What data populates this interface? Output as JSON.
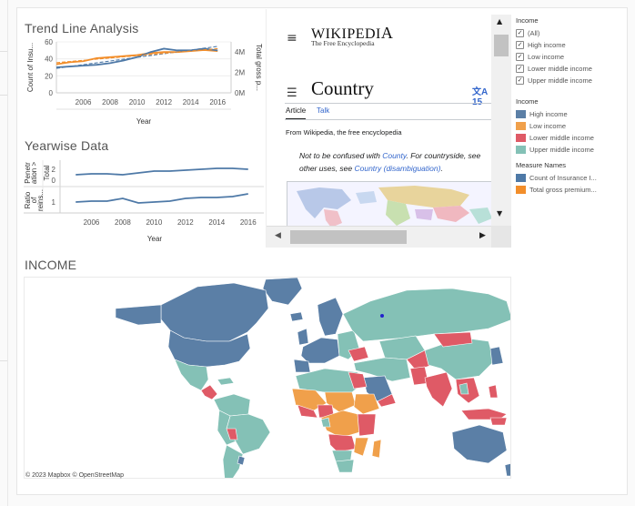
{
  "trend": {
    "title": "Trend Line Analysis",
    "y_left_label": "Count of Insu...",
    "y_right_label": "Total gross p...",
    "x_label": "Year",
    "y_left_ticks": [
      "60",
      "40",
      "20",
      "0"
    ],
    "y_right_ticks": [
      "4M",
      "2M",
      "0M"
    ],
    "x_ticks": [
      "2006",
      "2008",
      "2010",
      "2012",
      "2014",
      "2016"
    ]
  },
  "yearwise": {
    "title": "Yearwise Data",
    "row1_label_a": "Penetr",
    "row1_label_b": "ation >",
    "row1_label_c": "Total",
    "row1_tick": "2",
    "row1_tick_b": "0",
    "row2_label_a": "Ratio",
    "row2_label_b": "of",
    "row2_label_c": "reins...",
    "row2_tick": "1",
    "x_ticks": [
      "2006",
      "2008",
      "2010",
      "2012",
      "2014",
      "2016"
    ],
    "x_label": "Year"
  },
  "wiki": {
    "logo": "Wikipedia",
    "tagline": "The Free Encyclopedia",
    "menu_glyph": "≡",
    "toc_glyph": "☰",
    "heading": "Country",
    "lang": "文A 15",
    "tab_article": "Article",
    "tab_talk": "Talk",
    "from": "From Wikipedia, the free encyclopedia",
    "hat_1": "Not to be confused with ",
    "hat_link1": "County",
    "hat_2": ". For countryside, see",
    "hat_3": "other uses, see ",
    "hat_link2": "Country (disambiguation)",
    "hat_4": "."
  },
  "income_filter": {
    "title": "Income",
    "items": [
      {
        "label": "(All)",
        "checked": true
      },
      {
        "label": "High income",
        "checked": true
      },
      {
        "label": "Low income",
        "checked": true
      },
      {
        "label": "Lower middle income",
        "checked": true
      },
      {
        "label": "Upper middle income",
        "checked": true
      }
    ]
  },
  "income_legend": {
    "title": "Income",
    "items": [
      {
        "label": "High income",
        "color": "#5b7fa6"
      },
      {
        "label": "Low income",
        "color": "#f0a04b"
      },
      {
        "label": "Lower middle income",
        "color": "#df5a66"
      },
      {
        "label": "Upper middle income",
        "color": "#84c1b6"
      }
    ]
  },
  "measure_legend": {
    "title": "Measure Names",
    "items": [
      {
        "label": "Count of Insurance I...",
        "color": "#4e79a7"
      },
      {
        "label": "Total gross premium...",
        "color": "#f28e2b"
      }
    ]
  },
  "map": {
    "title": "INCOME",
    "credit": "© 2023 Mapbox  © OpenStreetMap"
  },
  "chart_data": [
    {
      "type": "line",
      "title": "Trend Line Analysis",
      "xlabel": "Year",
      "x": [
        2004,
        2005,
        2006,
        2007,
        2008,
        2009,
        2010,
        2011,
        2012,
        2013,
        2014,
        2015,
        2016
      ],
      "series": [
        {
          "name": "Count of Insurance I...",
          "axis": "left",
          "color": "#4e79a7",
          "values": [
            30,
            31,
            32,
            33,
            35,
            38,
            42,
            48,
            52,
            50,
            50,
            52,
            50
          ]
        },
        {
          "name": "Total gross premium...",
          "axis": "right",
          "color": "#f28e2b",
          "values": [
            2.8,
            3.0,
            3.1,
            3.4,
            3.5,
            3.6,
            3.7,
            3.9,
            4.0,
            4.0,
            4.1,
            4.2,
            4.1
          ]
        }
      ],
      "ylim_left": [
        0,
        60
      ],
      "ylim_right": [
        0,
        5
      ],
      "y_left_ticks": [
        0,
        20,
        40,
        60
      ],
      "y_right_ticks_label": [
        "0M",
        "2M",
        "4M"
      ]
    },
    {
      "type": "line",
      "title": "Yearwise Data",
      "xlabel": "Year",
      "x": [
        2005,
        2006,
        2007,
        2008,
        2009,
        2010,
        2011,
        2012,
        2013,
        2014,
        2015,
        2016
      ],
      "series": [
        {
          "name": "Penetration > Total",
          "color": "#4e79a7",
          "values": [
            2.0,
            2.05,
            2.05,
            2.0,
            2.1,
            2.2,
            2.2,
            2.25,
            2.3,
            2.35,
            2.35,
            2.3
          ]
        },
        {
          "name": "Ratio of reins...",
          "color": "#4e79a7",
          "values": [
            1.1,
            1.15,
            1.15,
            1.3,
            1.05,
            1.1,
            1.15,
            1.3,
            1.35,
            1.35,
            1.4,
            1.55
          ]
        }
      ]
    }
  ]
}
